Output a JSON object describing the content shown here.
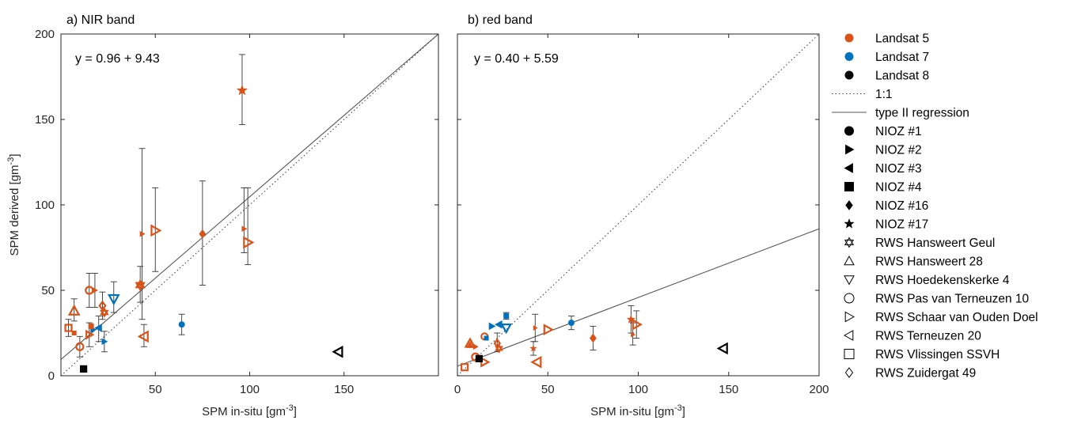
{
  "colors": {
    "landsat5": "#D95319",
    "landsat7": "#0072BD",
    "landsat8": "#000000",
    "line": "#555555"
  },
  "legend": [
    {
      "label": "Landsat 5",
      "kind": "dot",
      "color": "landsat5"
    },
    {
      "label": "Landsat 7",
      "kind": "dot",
      "color": "landsat7"
    },
    {
      "label": "Landsat 8",
      "kind": "dot",
      "color": "landsat8"
    },
    {
      "label": "1:1",
      "kind": "dotted-line"
    },
    {
      "label": "type II regression",
      "kind": "solid-line"
    },
    {
      "label": "NIOZ #1",
      "kind": "marker",
      "marker": "circle",
      "filled": true
    },
    {
      "label": "NIOZ #2",
      "kind": "marker",
      "marker": "tri-right",
      "filled": true
    },
    {
      "label": "NIOZ #3",
      "kind": "marker",
      "marker": "tri-left",
      "filled": true
    },
    {
      "label": "NIOZ #4",
      "kind": "marker",
      "marker": "square",
      "filled": true
    },
    {
      "label": "NIOZ #16",
      "kind": "marker",
      "marker": "diamond",
      "filled": true
    },
    {
      "label": "NIOZ #17",
      "kind": "marker",
      "marker": "star",
      "filled": true
    },
    {
      "label": "RWS Hansweert Geul",
      "kind": "marker",
      "marker": "hexagram",
      "filled": false
    },
    {
      "label": "RWS Hansweert 28",
      "kind": "marker",
      "marker": "tri-up",
      "filled": false
    },
    {
      "label": "RWS Hoedekenskerke 4",
      "kind": "marker",
      "marker": "tri-down",
      "filled": false
    },
    {
      "label": "RWS Pas van Terneuzen 10",
      "kind": "marker",
      "marker": "circle",
      "filled": false
    },
    {
      "label": "RWS Schaar van Ouden Doel",
      "kind": "marker",
      "marker": "tri-right",
      "filled": false
    },
    {
      "label": "RWS Terneuzen 20",
      "kind": "marker",
      "marker": "tri-left",
      "filled": false
    },
    {
      "label": "RWS Vlissingen SSVH",
      "kind": "marker",
      "marker": "square",
      "filled": false
    },
    {
      "label": "RWS Zuidergat 49",
      "kind": "marker",
      "marker": "diamond",
      "filled": false
    }
  ],
  "chart_data": [
    {
      "type": "scatter",
      "title": "a) NIR band",
      "equation": "y = 0.96 + 9.43",
      "xlabel": "SPM in-situ [gm",
      "ylabel": "SPM derived [gm",
      "unit_exponent": "-3",
      "xlim": [
        0,
        200
      ],
      "ylim": [
        0,
        200
      ],
      "xticks": [
        "50",
        "100",
        "150"
      ],
      "yticks": [
        "0",
        "50",
        "100",
        "150",
        "200"
      ],
      "one_to_one": {
        "from": [
          0,
          0
        ],
        "to": [
          200,
          200
        ]
      },
      "regression": {
        "from": [
          0,
          9.5
        ],
        "to": [
          200,
          200
        ]
      },
      "points": [
        {
          "x": 96,
          "y": 167,
          "yerr_low": 147,
          "yerr_high": 188,
          "marker": "star",
          "filled": true,
          "size": 12,
          "color": "landsat5"
        },
        {
          "x": 97,
          "y": 86,
          "yerr_low": 72,
          "yerr_high": 110,
          "marker": "tri-right",
          "filled": true,
          "size": 6,
          "color": "landsat5"
        },
        {
          "x": 99,
          "y": 78,
          "yerr_low": 65,
          "yerr_high": 110,
          "marker": "tri-right",
          "filled": false,
          "size": 12,
          "color": "landsat5"
        },
        {
          "x": 75,
          "y": 83,
          "yerr_low": 53,
          "yerr_high": 114,
          "marker": "diamond",
          "filled": true,
          "size": 10,
          "color": "landsat5"
        },
        {
          "x": 50,
          "y": 85,
          "yerr_low": 61,
          "yerr_high": 110,
          "marker": "tri-right",
          "filled": false,
          "size": 12,
          "color": "landsat5"
        },
        {
          "x": 43,
          "y": 83,
          "yerr_low": 33,
          "yerr_high": 133,
          "marker": "tri-right",
          "filled": true,
          "size": 6,
          "color": "landsat5"
        },
        {
          "x": 42,
          "y": 54,
          "yerr_low": 43,
          "yerr_high": 64,
          "marker": "star",
          "filled": true,
          "size": 9,
          "color": "landsat5"
        },
        {
          "x": 42,
          "y": 53,
          "marker": "hexagram",
          "filled": false,
          "size": 11,
          "color": "landsat5"
        },
        {
          "x": 44,
          "y": 23,
          "yerr_low": 17,
          "yerr_high": 30,
          "marker": "tri-left",
          "filled": false,
          "size": 12,
          "color": "landsat5"
        },
        {
          "x": 64,
          "y": 30,
          "yerr_low": 24,
          "yerr_high": 36,
          "marker": "circle",
          "filled": true,
          "size": 7,
          "color": "landsat7"
        },
        {
          "x": 28,
          "y": 45,
          "yerr_low": 37,
          "yerr_high": 55,
          "marker": "tri-down",
          "filled": false,
          "size": 12,
          "color": "landsat7"
        },
        {
          "x": 22,
          "y": 41,
          "yerr_low": 33,
          "yerr_high": 49,
          "marker": "diamond",
          "filled": false,
          "size": 10,
          "color": "landsat5"
        },
        {
          "x": 23,
          "y": 37,
          "marker": "hexagram",
          "filled": false,
          "size": 9,
          "color": "landsat5"
        },
        {
          "x": 15,
          "y": 50,
          "yerr_low": 40,
          "yerr_high": 60,
          "marker": "circle",
          "filled": false,
          "size": 9,
          "color": "landsat5"
        },
        {
          "x": 18,
          "y": 50,
          "yerr_low": 40,
          "yerr_high": 60,
          "marker": "tri-right",
          "filled": true,
          "size": 6,
          "color": "landsat5"
        },
        {
          "x": 23,
          "y": 20,
          "yerr_low": 14,
          "yerr_high": 26,
          "marker": "tri-right",
          "filled": true,
          "size": 7,
          "color": "landsat7"
        },
        {
          "x": 20,
          "y": 28,
          "yerr_low": 20,
          "yerr_high": 35,
          "marker": "tri-left",
          "filled": true,
          "size": 9,
          "color": "landsat7"
        },
        {
          "x": 17,
          "y": 27,
          "marker": "tri-right",
          "filled": true,
          "size": 7,
          "color": "landsat7"
        },
        {
          "x": 15,
          "y": 24,
          "yerr_low": 17,
          "yerr_high": 31,
          "marker": "tri-right",
          "filled": false,
          "size": 9,
          "color": "landsat5"
        },
        {
          "x": 16,
          "y": 29,
          "marker": "square",
          "filled": true,
          "size": 6,
          "color": "landsat5"
        },
        {
          "x": 7,
          "y": 38,
          "yerr_low": 32,
          "yerr_high": 45,
          "marker": "tri-up",
          "filled": false,
          "size": 12,
          "color": "landsat5"
        },
        {
          "x": 4,
          "y": 28,
          "yerr_low": 23,
          "yerr_high": 33,
          "marker": "square",
          "filled": false,
          "size": 8,
          "color": "landsat5"
        },
        {
          "x": 7,
          "y": 25,
          "marker": "square",
          "filled": true,
          "size": 5,
          "color": "landsat5"
        },
        {
          "x": 10,
          "y": 17,
          "yerr_low": 11,
          "yerr_high": 23,
          "marker": "circle",
          "filled": false,
          "size": 9,
          "color": "landsat5"
        },
        {
          "x": 12,
          "y": 4,
          "marker": "square",
          "filled": false,
          "size": 7,
          "color": "landsat8"
        },
        {
          "x": 12,
          "y": 4,
          "marker": "square",
          "filled": true,
          "size": 4,
          "color": "landsat8"
        },
        {
          "x": 147,
          "y": 14,
          "marker": "tri-left",
          "filled": false,
          "size": 12,
          "color": "landsat8"
        }
      ]
    },
    {
      "type": "scatter",
      "title": "b) red band",
      "equation": "y = 0.40 + 5.59",
      "xlabel": "SPM in-situ [gm",
      "ylabel": "",
      "unit_exponent": "-3",
      "xlim": [
        0,
        200
      ],
      "ylim": [
        0,
        200
      ],
      "xticks": [
        "0",
        "50",
        "100",
        "150",
        "200"
      ],
      "yticks": [],
      "one_to_one": {
        "from": [
          0,
          0
        ],
        "to": [
          200,
          200
        ]
      },
      "regression": {
        "from": [
          0,
          5.6
        ],
        "to": [
          200,
          86
        ]
      },
      "points": [
        {
          "x": 96,
          "y": 33,
          "yerr_low": 25,
          "yerr_high": 41,
          "marker": "star",
          "filled": true,
          "size": 9,
          "color": "landsat5"
        },
        {
          "x": 97,
          "y": 24,
          "yerr_low": 18,
          "yerr_high": 31,
          "marker": "tri-right",
          "filled": true,
          "size": 5,
          "color": "landsat5"
        },
        {
          "x": 99,
          "y": 30,
          "yerr_low": 22,
          "yerr_high": 38,
          "marker": "tri-right",
          "filled": false,
          "size": 11,
          "color": "landsat5"
        },
        {
          "x": 75,
          "y": 22,
          "yerr_low": 15,
          "yerr_high": 29,
          "marker": "diamond",
          "filled": true,
          "size": 10,
          "color": "landsat5"
        },
        {
          "x": 63,
          "y": 31,
          "yerr_low": 27,
          "yerr_high": 35,
          "marker": "circle",
          "filled": true,
          "size": 7,
          "color": "landsat7"
        },
        {
          "x": 50,
          "y": 27,
          "marker": "tri-right",
          "filled": false,
          "size": 11,
          "color": "landsat5"
        },
        {
          "x": 43,
          "y": 28,
          "yerr_low": 20,
          "yerr_high": 36,
          "marker": "tri-right",
          "filled": true,
          "size": 5,
          "color": "landsat5"
        },
        {
          "x": 42,
          "y": 16,
          "yerr_low": 12,
          "yerr_high": 20,
          "marker": "star",
          "filled": true,
          "size": 7,
          "color": "landsat5"
        },
        {
          "x": 44,
          "y": 8,
          "marker": "tri-left",
          "filled": false,
          "size": 12,
          "color": "landsat5"
        },
        {
          "x": 27,
          "y": 35,
          "yerr_low": 33,
          "yerr_high": 37,
          "marker": "square",
          "filled": true,
          "size": 6,
          "color": "landsat7"
        },
        {
          "x": 27,
          "y": 28,
          "marker": "tri-down",
          "filled": false,
          "size": 11,
          "color": "landsat7"
        },
        {
          "x": 23,
          "y": 30,
          "marker": "tri-left",
          "filled": true,
          "size": 9,
          "color": "landsat7"
        },
        {
          "x": 19,
          "y": 29,
          "marker": "tri-right",
          "filled": true,
          "size": 8,
          "color": "landsat7"
        },
        {
          "x": 22,
          "y": 19,
          "yerr_low": 14,
          "yerr_high": 25,
          "marker": "diamond",
          "filled": false,
          "size": 9,
          "color": "landsat5"
        },
        {
          "x": 23,
          "y": 16,
          "marker": "hexagram",
          "filled": false,
          "size": 8,
          "color": "landsat5"
        },
        {
          "x": 15,
          "y": 23,
          "marker": "circle",
          "filled": false,
          "size": 8,
          "color": "landsat5"
        },
        {
          "x": 16,
          "y": 22,
          "marker": "square",
          "filled": true,
          "size": 5,
          "color": "landsat7"
        },
        {
          "x": 15,
          "y": 8,
          "marker": "tri-right",
          "filled": false,
          "size": 10,
          "color": "landsat5"
        },
        {
          "x": 10,
          "y": 17,
          "marker": "tri-right",
          "filled": true,
          "size": 6,
          "color": "landsat5"
        },
        {
          "x": 7,
          "y": 19,
          "marker": "tri-up",
          "filled": false,
          "size": 11,
          "color": "landsat5"
        },
        {
          "x": 7,
          "y": 18,
          "marker": "tri-up",
          "filled": true,
          "size": 8,
          "color": "landsat5"
        },
        {
          "x": 4,
          "y": 5,
          "marker": "square",
          "filled": false,
          "size": 8,
          "color": "landsat5"
        },
        {
          "x": 10,
          "y": 11,
          "marker": "circle",
          "filled": false,
          "size": 9,
          "color": "landsat5"
        },
        {
          "x": 12,
          "y": 10,
          "marker": "square",
          "filled": false,
          "size": 7,
          "color": "landsat8"
        },
        {
          "x": 12,
          "y": 10,
          "marker": "square",
          "filled": true,
          "size": 4,
          "color": "landsat8"
        },
        {
          "x": 147,
          "y": 16,
          "marker": "tri-left",
          "filled": false,
          "size": 12,
          "color": "landsat8"
        }
      ]
    }
  ]
}
